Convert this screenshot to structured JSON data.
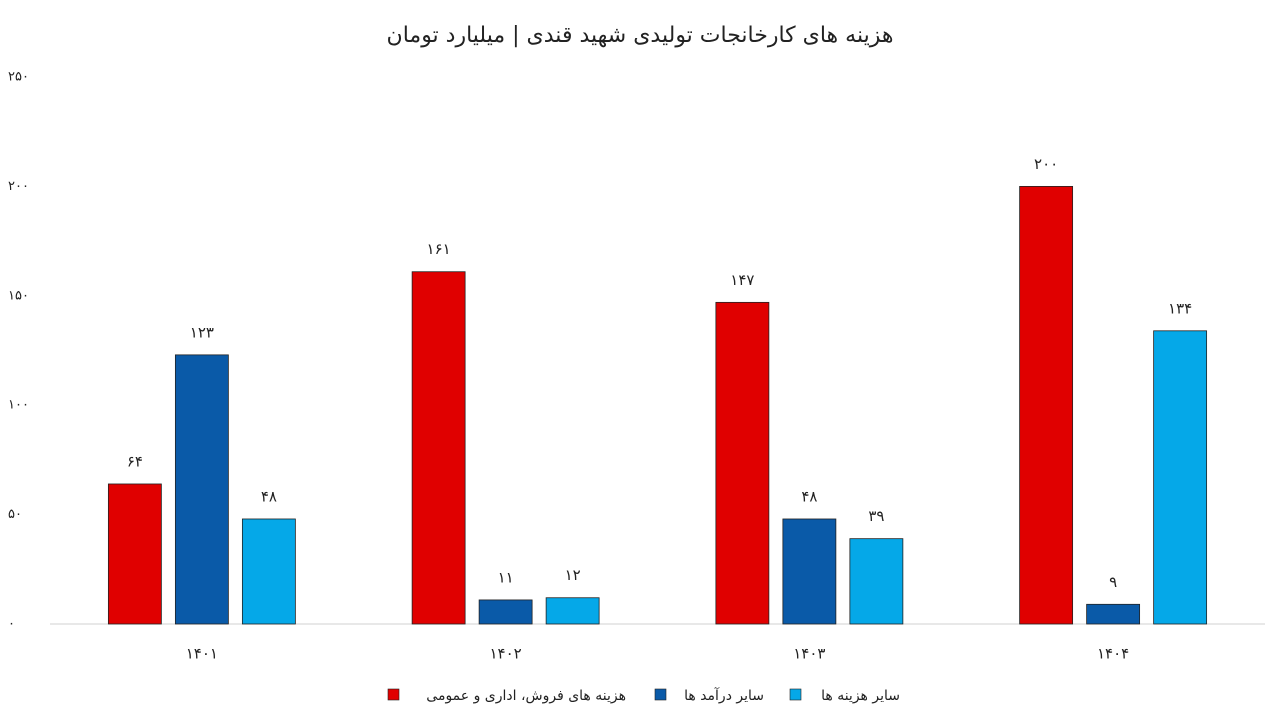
{
  "chart_data": {
    "type": "bar",
    "title": "هزینه های کارخانجات تولیدی شهید قندی | میلیارد تومان",
    "categories": [
      "۱۴۰۱",
      "۱۴۰۲",
      "۱۴۰۳",
      "۱۴۰۴"
    ],
    "series": [
      {
        "name": "هزینه های فروش، اداری و عمومی",
        "color": "#e00000",
        "values": [
          64,
          161,
          147,
          200
        ],
        "value_labels": [
          "۶۴",
          "۱۶۱",
          "۱۴۷",
          "۲۰۰"
        ]
      },
      {
        "name": "سایر درآمد ها",
        "color": "#0a5aa8",
        "values": [
          123,
          11,
          48,
          9
        ],
        "value_labels": [
          "۱۲۳",
          "۱۱",
          "۴۸",
          "۹"
        ]
      },
      {
        "name": "سایر هزینه ها",
        "color": "#05a8e8",
        "values": [
          48,
          12,
          39,
          134
        ],
        "value_labels": [
          "۴۸",
          "۱۲",
          "۳۹",
          "۱۳۴"
        ]
      }
    ],
    "ylim": [
      0,
      250
    ],
    "yticks": [
      {
        "value": 0,
        "label": "۰"
      },
      {
        "value": 50,
        "label": "۵۰"
      },
      {
        "value": 100,
        "label": "۱۰۰"
      },
      {
        "value": 150,
        "label": "۱۵۰"
      },
      {
        "value": 200,
        "label": "۲۰۰"
      },
      {
        "value": 250,
        "label": "۲۵۰"
      }
    ],
    "grid": false,
    "legend": "bottom"
  }
}
